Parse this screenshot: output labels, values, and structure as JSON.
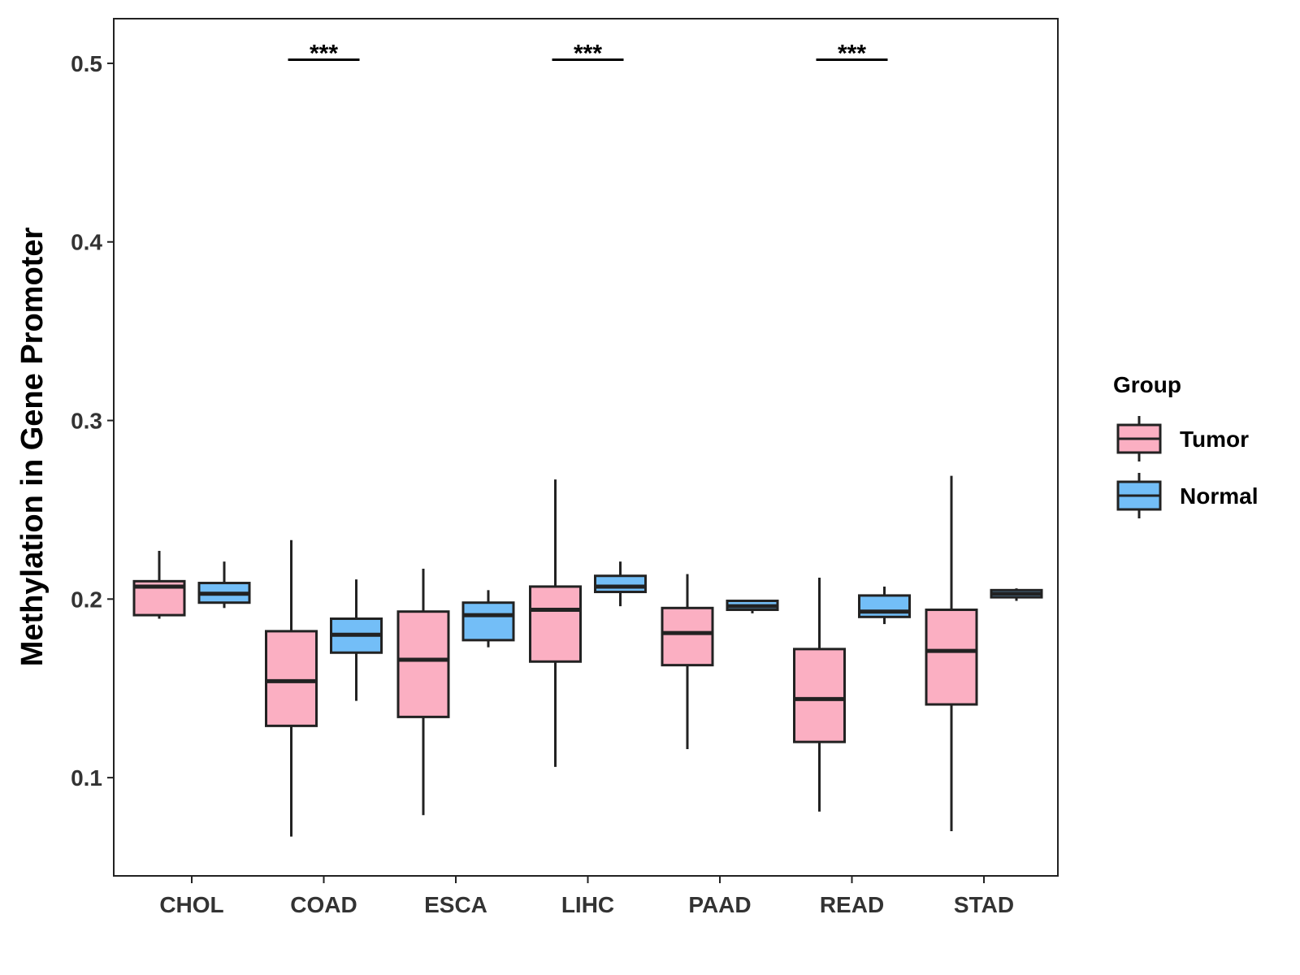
{
  "chart_data": {
    "type": "boxplot",
    "ylabel": "Methylation in Gene Promoter",
    "xlabel": "",
    "ylim": [
      0.045,
      0.525
    ],
    "yticks": [
      0.1,
      0.2,
      0.3,
      0.4,
      0.5
    ],
    "ytick_labels": [
      "0.1",
      "0.2",
      "0.3",
      "0.4",
      "0.5"
    ],
    "categories": [
      "CHOL",
      "COAD",
      "ESCA",
      "LIHC",
      "PAAD",
      "READ",
      "STAD"
    ],
    "legend": {
      "title": "Group",
      "position": "right",
      "entries": [
        {
          "name": "Tumor",
          "color": "#fbafc2"
        },
        {
          "name": "Normal",
          "color": "#73bef7"
        }
      ]
    },
    "series": [
      {
        "name": "Tumor",
        "color": "#fbafc2",
        "boxes": [
          {
            "min": 0.189,
            "q1": 0.191,
            "median": 0.207,
            "q3": 0.21,
            "max": 0.227
          },
          {
            "min": 0.067,
            "q1": 0.129,
            "median": 0.154,
            "q3": 0.182,
            "max": 0.233
          },
          {
            "min": 0.079,
            "q1": 0.134,
            "median": 0.166,
            "q3": 0.193,
            "max": 0.217
          },
          {
            "min": 0.106,
            "q1": 0.165,
            "median": 0.194,
            "q3": 0.207,
            "max": 0.267
          },
          {
            "min": 0.116,
            "q1": 0.163,
            "median": 0.181,
            "q3": 0.195,
            "max": 0.214
          },
          {
            "min": 0.081,
            "q1": 0.12,
            "median": 0.144,
            "q3": 0.172,
            "max": 0.212
          },
          {
            "min": 0.07,
            "q1": 0.141,
            "median": 0.171,
            "q3": 0.194,
            "max": 0.269
          }
        ]
      },
      {
        "name": "Normal",
        "color": "#73bef7",
        "boxes": [
          {
            "min": 0.195,
            "q1": 0.198,
            "median": 0.203,
            "q3": 0.209,
            "max": 0.221
          },
          {
            "min": 0.143,
            "q1": 0.17,
            "median": 0.18,
            "q3": 0.189,
            "max": 0.211
          },
          {
            "min": 0.173,
            "q1": 0.177,
            "median": 0.191,
            "q3": 0.198,
            "max": 0.205
          },
          {
            "min": 0.196,
            "q1": 0.204,
            "median": 0.207,
            "q3": 0.213,
            "max": 0.221
          },
          {
            "min": 0.192,
            "q1": 0.194,
            "median": 0.196,
            "q3": 0.199,
            "max": 0.199
          },
          {
            "min": 0.186,
            "q1": 0.19,
            "median": 0.193,
            "q3": 0.202,
            "max": 0.207
          },
          {
            "min": 0.199,
            "q1": 0.201,
            "median": 0.203,
            "q3": 0.205,
            "max": 0.206
          }
        ]
      }
    ],
    "annotations": [
      {
        "category": "COAD",
        "label": "***",
        "y": 0.502
      },
      {
        "category": "LIHC",
        "label": "***",
        "y": 0.502
      },
      {
        "category": "READ",
        "label": "***",
        "y": 0.502
      }
    ]
  }
}
